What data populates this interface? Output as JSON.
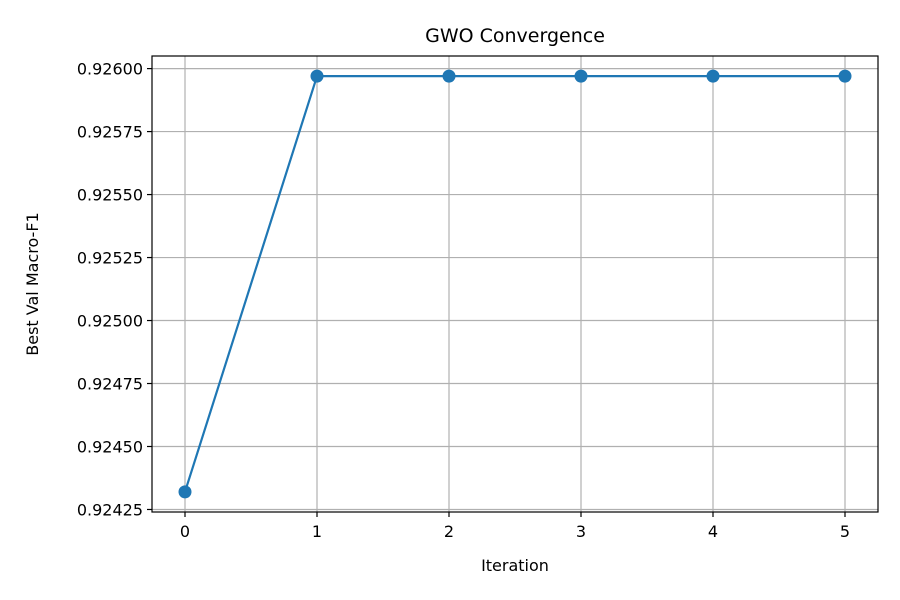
{
  "chart_data": {
    "type": "line",
    "title": "GWO Convergence",
    "xlabel": "Iteration",
    "ylabel": "Best Val Macro-F1",
    "x": [
      0,
      1,
      2,
      3,
      4,
      5
    ],
    "series": [
      {
        "values": [
          0.92432,
          0.92597,
          0.92597,
          0.92597,
          0.92597,
          0.92597
        ],
        "color": "#1f77b4",
        "marker": "circle"
      }
    ],
    "xlim": [
      -0.25,
      5.25
    ],
    "ylim": [
      0.92424,
      0.92605
    ],
    "xticks": [
      "0",
      "1",
      "2",
      "3",
      "4",
      "5"
    ],
    "yticks": [
      "0.92425",
      "0.92450",
      "0.92475",
      "0.92500",
      "0.92525",
      "0.92550",
      "0.92575",
      "0.92600"
    ],
    "grid": true,
    "grid_color": "#b0b0b0"
  }
}
